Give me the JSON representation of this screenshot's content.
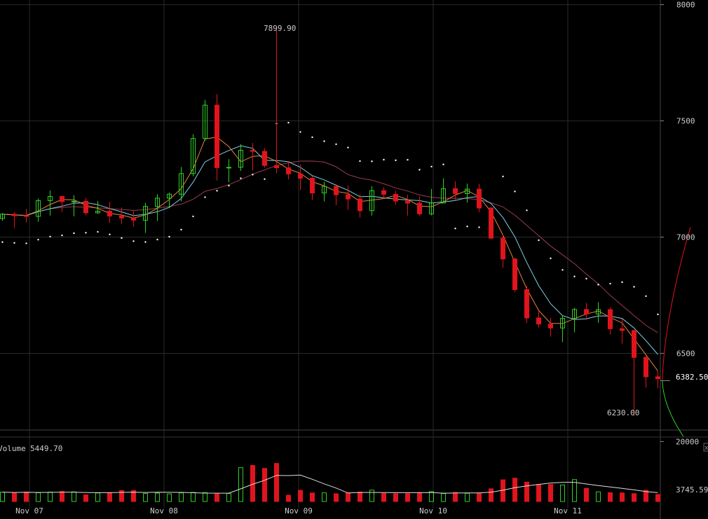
{
  "chart_data": {
    "type": "candlestick",
    "x_ticks": [
      "Nov 07",
      "Nov 08",
      "Nov 09",
      "Nov 10",
      "Nov 11"
    ],
    "price_axis": {
      "ylim": [
        6170,
        8020
      ],
      "ticks": [
        8000,
        7500,
        7000,
        6500
      ],
      "last_price_label": "6382.50",
      "last_price": 6382.5
    },
    "annotations": {
      "high_label": "7899.90",
      "high_value": 7899.9,
      "low_label": "6230.00",
      "low_value": 6230.0
    },
    "volume": {
      "label": "Volume",
      "value_label": "5449.70",
      "ticks": [
        20000
      ],
      "last_label": "3745.59",
      "ylim": [
        0,
        21500
      ]
    },
    "colors": {
      "up": "#2fd024",
      "down": "#e0141c",
      "ma_fast": "#e3873a",
      "ma_mid": "#7fd2e6",
      "ma_slow": "#9a3c4e",
      "sar": "#ffffff",
      "grid": "#2a2a2a",
      "axis_text": "#cccccc",
      "bid_depth": "#e0141c",
      "ask_depth": "#2fd024"
    }
  }
}
